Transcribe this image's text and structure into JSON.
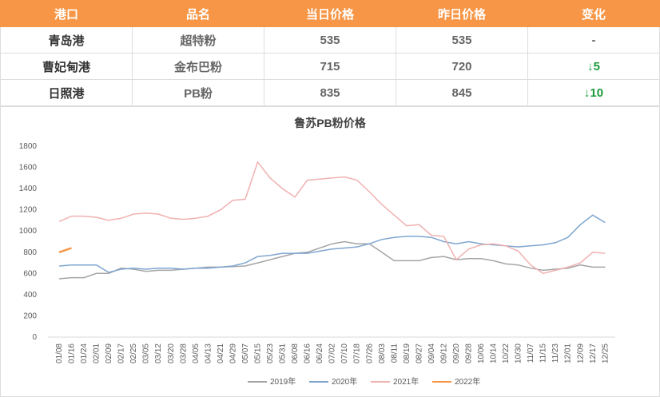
{
  "table": {
    "header": [
      "港口",
      "品名",
      "当日价格",
      "昨日价格",
      "变化"
    ],
    "rows": [
      [
        "青岛港",
        "超特粉",
        "535",
        "535",
        "-"
      ],
      [
        "曹妃甸港",
        "金布巴粉",
        "715",
        "720",
        "↓5"
      ],
      [
        "日照港",
        "PB粉",
        "835",
        "845",
        "↓10"
      ]
    ]
  },
  "chart_data": {
    "type": "line",
    "title": "鲁苏PB粉价格",
    "categories": [
      "01/08",
      "01/16",
      "01/24",
      "02/01",
      "02/09",
      "02/17",
      "02/25",
      "03/05",
      "03/12",
      "03/20",
      "03/28",
      "04/05",
      "04/13",
      "04/21",
      "04/29",
      "05/07",
      "05/15",
      "05/23",
      "05/31",
      "06/08",
      "06/16",
      "06/24",
      "07/02",
      "07/10",
      "07/18",
      "07/26",
      "08/03",
      "08/11",
      "08/19",
      "08/27",
      "09/04",
      "09/12",
      "09/20",
      "09/28",
      "10/06",
      "10/14",
      "10/22",
      "10/30",
      "11/07",
      "11/15",
      "11/23",
      "12/01",
      "12/09",
      "12/17",
      "12/25"
    ],
    "series": [
      {
        "name": "2019年",
        "color": "#a5a5a5",
        "values": [
          550,
          560,
          560,
          600,
          600,
          650,
          640,
          620,
          630,
          630,
          640,
          650,
          660,
          660,
          665,
          670,
          700,
          730,
          760,
          790,
          800,
          840,
          880,
          900,
          880,
          880,
          800,
          720,
          720,
          720,
          750,
          760,
          730,
          740,
          740,
          720,
          690,
          680,
          650,
          630,
          640,
          650,
          680,
          660,
          660
        ]
      },
      {
        "name": "2020年",
        "color": "#7ea6d0",
        "values": [
          670,
          680,
          680,
          680,
          610,
          640,
          650,
          640,
          650,
          650,
          640,
          650,
          650,
          660,
          670,
          700,
          760,
          770,
          790,
          790,
          790,
          810,
          830,
          840,
          850,
          880,
          920,
          940,
          950,
          950,
          940,
          900,
          880,
          900,
          880,
          870,
          860,
          850,
          860,
          870,
          890,
          940,
          1060,
          1150,
          1080
        ]
      },
      {
        "name": "2021年",
        "color": "#f0b1b1",
        "values": [
          1090,
          1140,
          1140,
          1130,
          1100,
          1120,
          1160,
          1170,
          1160,
          1120,
          1110,
          1120,
          1140,
          1200,
          1290,
          1300,
          1650,
          1500,
          1400,
          1320,
          1480,
          1490,
          1500,
          1510,
          1480,
          1370,
          1250,
          1150,
          1050,
          1060,
          960,
          950,
          730,
          830,
          870,
          880,
          860,
          810,
          680,
          600,
          630,
          660,
          700,
          800,
          790
        ]
      },
      {
        "name": "2022年",
        "color": "#f79646",
        "values": [
          800,
          840,
          null,
          null,
          null,
          null,
          null,
          null,
          null,
          null,
          null,
          null,
          null,
          null,
          null,
          null,
          null,
          null,
          null,
          null,
          null,
          null,
          null,
          null,
          null,
          null,
          null,
          null,
          null,
          null,
          null,
          null,
          null,
          null,
          null,
          null,
          null,
          null,
          null,
          null,
          null,
          null,
          null,
          null,
          null
        ]
      }
    ],
    "ylim": [
      0,
      1800
    ],
    "yticks": [
      0,
      200,
      400,
      600,
      800,
      1000,
      1200,
      1400,
      1600,
      1800
    ],
    "legend": "bottom"
  }
}
